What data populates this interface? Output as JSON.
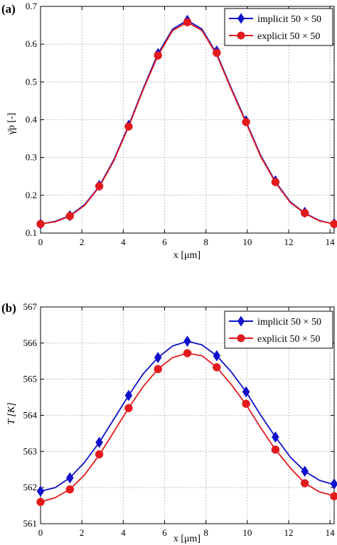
{
  "colors": {
    "implicit": "#1010cc",
    "explicit": "#e31a1c",
    "grid": "#9a9a9a",
    "axis": "#000000"
  },
  "chart_data": [
    {
      "type": "line",
      "panel_label": "(a)",
      "xlabel": "x [μm]",
      "ylabel": "γ̄p [-]",
      "xlim": [
        0,
        14.2
      ],
      "ylim": [
        0.1,
        0.7
      ],
      "xticks": [
        0,
        2,
        4,
        6,
        8,
        10,
        12,
        14
      ],
      "yticks": [
        0.1,
        0.2,
        0.3,
        0.4,
        0.5,
        0.6,
        0.7
      ],
      "xtick_labels": [
        "0",
        "2",
        "4",
        "6",
        "8",
        "10",
        "12",
        "14"
      ],
      "ytick_labels": [
        "0.1",
        "0.2",
        "0.3",
        "0.4",
        "0.5",
        "0.6",
        "0.7"
      ],
      "grid": true,
      "legend_position": "top-right",
      "series": [
        {
          "name": "implicit 50 × 50",
          "marker": "diamond",
          "curve_x": [
            0,
            0.71,
            1.42,
            2.13,
            2.84,
            3.55,
            4.26,
            4.97,
            5.68,
            6.39,
            7.1,
            7.81,
            8.52,
            9.23,
            9.94,
            10.65,
            11.36,
            12.07,
            12.78,
            13.49,
            14.2
          ],
          "curve_y": [
            0.124,
            0.131,
            0.146,
            0.175,
            0.224,
            0.295,
            0.385,
            0.483,
            0.575,
            0.64,
            0.663,
            0.64,
            0.575,
            0.483,
            0.395,
            0.305,
            0.236,
            0.183,
            0.153,
            0.133,
            0.124
          ],
          "marker_x": [
            0,
            1.42,
            2.84,
            4.26,
            5.68,
            7.1,
            8.52,
            9.94,
            11.36,
            12.78,
            14.2
          ],
          "marker_y": [
            0.124,
            0.146,
            0.226,
            0.385,
            0.575,
            0.663,
            0.582,
            0.397,
            0.238,
            0.155,
            0.125
          ]
        },
        {
          "name": "explicit 50 × 50",
          "marker": "circle",
          "curve_x": [
            0,
            0.71,
            1.42,
            2.13,
            2.84,
            3.55,
            4.26,
            4.97,
            5.68,
            6.39,
            7.1,
            7.81,
            8.52,
            9.23,
            9.94,
            10.65,
            11.36,
            12.07,
            12.78,
            13.49,
            14.2
          ],
          "curve_y": [
            0.124,
            0.13,
            0.145,
            0.173,
            0.222,
            0.292,
            0.382,
            0.48,
            0.57,
            0.636,
            0.658,
            0.636,
            0.572,
            0.48,
            0.392,
            0.302,
            0.234,
            0.181,
            0.152,
            0.132,
            0.124
          ],
          "marker_x": [
            0,
            1.42,
            2.84,
            4.26,
            5.68,
            7.1,
            8.52,
            9.94,
            11.36,
            12.78,
            14.2
          ],
          "marker_y": [
            0.124,
            0.145,
            0.224,
            0.382,
            0.57,
            0.658,
            0.577,
            0.394,
            0.235,
            0.153,
            0.124
          ]
        }
      ]
    },
    {
      "type": "line",
      "panel_label": "(b)",
      "xlabel": "x [μm]",
      "ylabel": "T [K]",
      "xlim": [
        0,
        14.2
      ],
      "ylim": [
        561,
        567
      ],
      "xticks": [
        0,
        2,
        4,
        6,
        8,
        10,
        12,
        14
      ],
      "yticks": [
        561,
        562,
        563,
        564,
        565,
        566,
        567
      ],
      "xtick_labels": [
        "0",
        "2",
        "4",
        "6",
        "8",
        "10",
        "12",
        "14"
      ],
      "ytick_labels": [
        "561",
        "562",
        "563",
        "564",
        "565",
        "566",
        "567"
      ],
      "grid": true,
      "legend_position": "top-right",
      "series": [
        {
          "name": "implicit 50 × 50",
          "marker": "diamond",
          "curve_x": [
            0,
            0.71,
            1.42,
            2.13,
            2.84,
            3.55,
            4.26,
            4.97,
            5.68,
            6.39,
            7.1,
            7.81,
            8.52,
            9.23,
            9.94,
            10.65,
            11.36,
            12.07,
            12.78,
            13.49,
            14.2
          ],
          "curve_y": [
            561.9,
            562.0,
            562.27,
            562.7,
            563.25,
            563.9,
            564.55,
            565.15,
            565.6,
            565.92,
            566.05,
            565.95,
            565.65,
            565.2,
            564.65,
            564.0,
            563.4,
            562.85,
            562.45,
            562.2,
            562.08
          ],
          "marker_x": [
            0,
            1.42,
            2.84,
            4.26,
            5.68,
            7.1,
            8.52,
            9.94,
            11.36,
            12.78,
            14.2
          ],
          "marker_y": [
            561.9,
            562.27,
            563.25,
            564.55,
            565.6,
            566.05,
            565.65,
            564.65,
            563.4,
            562.45,
            562.1
          ]
        },
        {
          "name": "explicit 50 × 50",
          "marker": "circle",
          "curve_x": [
            0,
            0.71,
            1.42,
            2.13,
            2.84,
            3.55,
            4.26,
            4.97,
            5.68,
            6.39,
            7.1,
            7.81,
            8.52,
            9.23,
            9.94,
            10.65,
            11.36,
            12.07,
            12.78,
            13.49,
            14.2
          ],
          "curve_y": [
            561.6,
            561.72,
            561.95,
            562.35,
            562.9,
            563.55,
            564.2,
            564.8,
            565.28,
            565.6,
            565.72,
            565.65,
            565.33,
            564.85,
            564.3,
            563.65,
            563.05,
            562.55,
            562.12,
            561.88,
            561.77
          ],
          "marker_x": [
            0,
            1.42,
            2.84,
            4.26,
            5.68,
            7.1,
            8.52,
            9.94,
            11.36,
            12.78,
            14.2
          ],
          "marker_y": [
            561.6,
            561.95,
            562.92,
            564.2,
            565.28,
            565.72,
            565.33,
            564.32,
            563.05,
            562.12,
            561.76
          ]
        }
      ]
    }
  ]
}
